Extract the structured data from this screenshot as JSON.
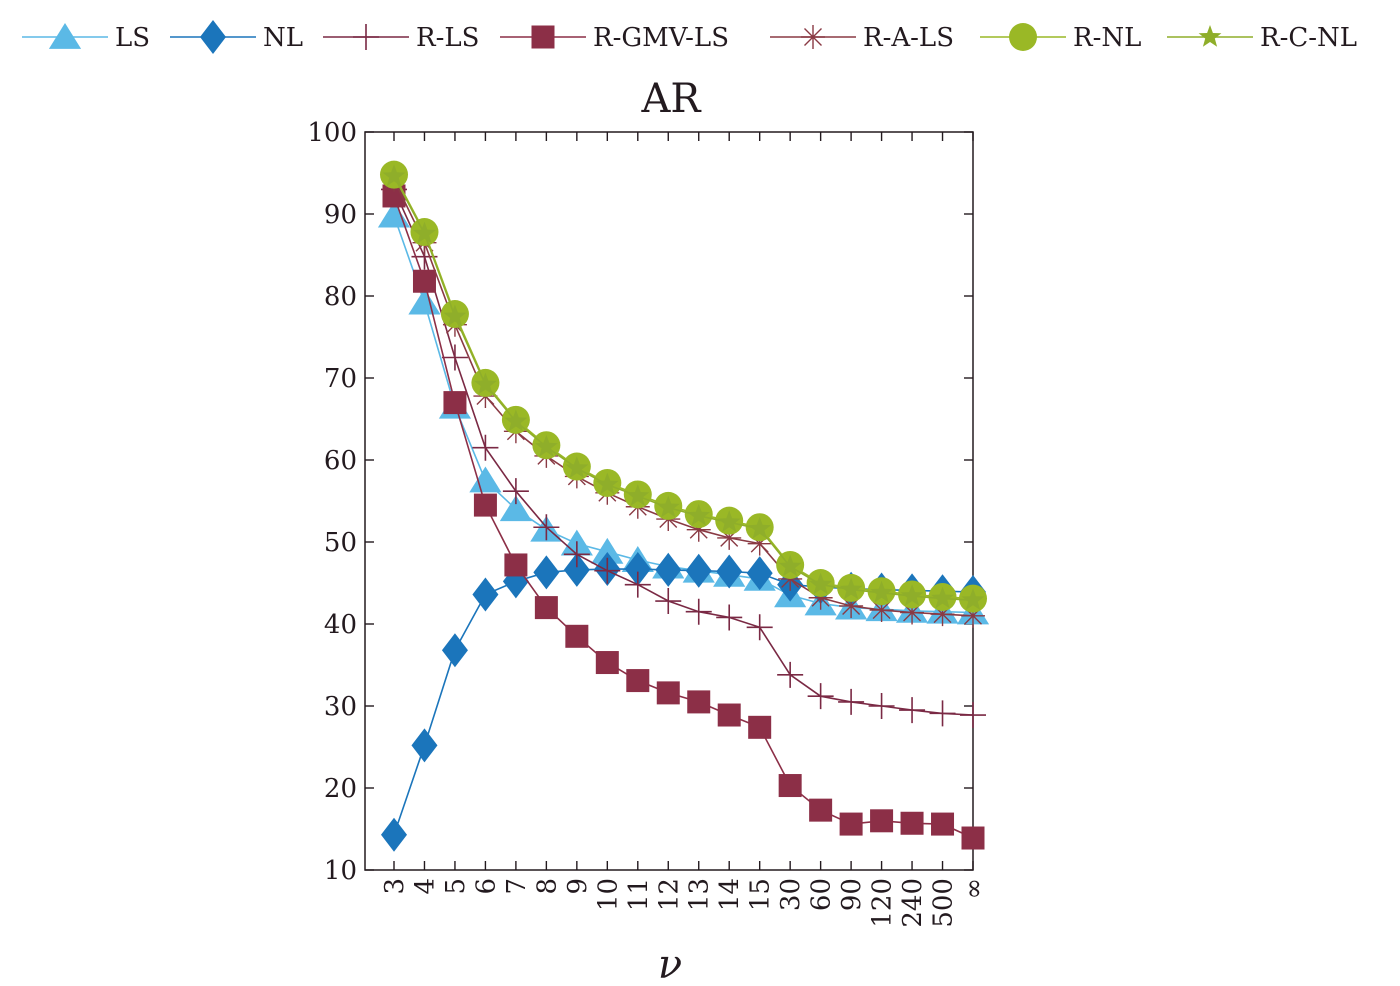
{
  "chart_data": {
    "type": "line",
    "title": "AR",
    "xlabel": "ν",
    "ylabel": "",
    "ylim": [
      10,
      100
    ],
    "yticks": [
      10,
      20,
      30,
      40,
      50,
      60,
      70,
      80,
      90,
      100
    ],
    "categories": [
      "3",
      "4",
      "5",
      "6",
      "7",
      "8",
      "9",
      "10",
      "11",
      "12",
      "13",
      "14",
      "15",
      "30",
      "60",
      "90",
      "120",
      "240",
      "500",
      "∞"
    ],
    "legend_position": "top",
    "grid": false,
    "series": [
      {
        "name": "LS",
        "marker": "triangle",
        "color": "#5bb9e6",
        "values": [
          89.8,
          79.2,
          66.5,
          57.5,
          54.0,
          51.5,
          49.8,
          48.8,
          47.8,
          47.0,
          46.5,
          46.0,
          45.5,
          43.5,
          42.5,
          42.0,
          41.8,
          41.6,
          41.5,
          41.4
        ]
      },
      {
        "name": "NL",
        "marker": "diamond",
        "color": "#1b75bb",
        "values": [
          14.3,
          25.2,
          36.8,
          43.6,
          45.2,
          46.3,
          46.6,
          46.7,
          46.7,
          46.6,
          46.5,
          46.4,
          46.2,
          44.8,
          44.5,
          44.3,
          44.2,
          44.1,
          44.0,
          43.9
        ]
      },
      {
        "name": "R-LS",
        "marker": "plus",
        "color": "#7a2944",
        "values": [
          93.0,
          84.8,
          72.5,
          61.5,
          56.2,
          51.8,
          48.5,
          46.5,
          44.8,
          42.8,
          41.5,
          40.8,
          39.6,
          33.8,
          31.2,
          30.5,
          30.0,
          29.5,
          29.1,
          28.9
        ]
      },
      {
        "name": "R-GMV-LS",
        "marker": "square",
        "color": "#8c2f47",
        "values": [
          92.2,
          81.8,
          67.0,
          54.5,
          47.2,
          42.0,
          38.5,
          35.3,
          33.1,
          31.6,
          30.5,
          28.9,
          27.4,
          20.3,
          17.3,
          15.6,
          16.0,
          15.7,
          15.6,
          13.9
        ]
      },
      {
        "name": "R-A-LS",
        "marker": "asterisk",
        "color": "#8a3a44",
        "values": [
          94.2,
          86.5,
          76.5,
          67.8,
          63.5,
          60.5,
          58.0,
          56.0,
          54.3,
          52.8,
          51.5,
          50.5,
          49.8,
          45.5,
          43.2,
          42.2,
          41.7,
          41.4,
          41.2,
          41.0
        ]
      },
      {
        "name": "R-NL",
        "marker": "circle",
        "color": "#9ab826",
        "values": [
          94.8,
          87.8,
          77.8,
          69.4,
          64.9,
          61.8,
          59.2,
          57.2,
          55.8,
          54.4,
          53.4,
          52.6,
          51.8,
          47.2,
          45.0,
          44.4,
          44.0,
          43.6,
          43.3,
          43.1
        ]
      },
      {
        "name": "R-C-NL",
        "marker": "star",
        "color": "#8fae2a",
        "values": [
          94.6,
          87.6,
          77.5,
          69.2,
          64.7,
          61.6,
          59.0,
          57.0,
          55.6,
          54.2,
          53.2,
          52.4,
          51.6,
          47.0,
          44.8,
          44.2,
          43.8,
          43.4,
          43.1,
          42.9
        ]
      }
    ]
  }
}
